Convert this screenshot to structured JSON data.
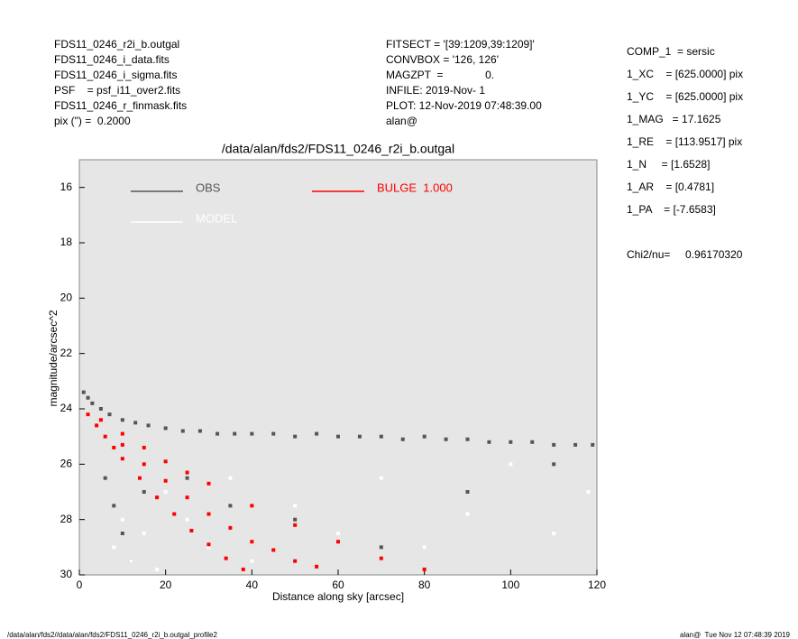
{
  "header": {
    "left": [
      "FDS11_0246_r2i_b.outgal",
      "FDS11_0246_i_data.fits",
      "FDS11_0246_i_sigma.fits",
      "PSF    = psf_i11_over2.fits",
      "FDS11_0246_r_finmask.fits",
      "pix (\") =  0.2000"
    ],
    "middle": [
      "FITSECT = '[39:1209,39:1209]'",
      "CONVBOX = '126, 126'",
      "MAGZPT  =              0.",
      "INFILE: 2019-Nov- 1",
      "PLOT: 12-Nov-2019 07:48:39.00",
      "alan@"
    ],
    "right": [
      "COMP_1  = sersic",
      "1_XC    = [625.0000] pix",
      "1_YC    = [625.0000] pix",
      "1_MAG   = 17.1625",
      "1_RE    = [113.9517] pix",
      "1_N     = [1.6528]",
      "1_AR    = [0.4781]",
      "1_PA    = [-7.6583]"
    ],
    "chi2": "Chi2/nu=     0.96170320"
  },
  "footer": {
    "left": "/data/alan/fds2//data/alan/fds2/FDS11_0246_r2i_b.outgal_profile2",
    "right": "alan@  Tue Nov 12 07:48:39 2019"
  },
  "chart_data": {
    "type": "scatter",
    "title": "/data/alan/fds2/FDS11_0246_r2i_b.outgal",
    "xlabel": "Distance along sky [arcsec]",
    "ylabel": "magnitude/arcsec^2",
    "xlim": [
      0,
      120
    ],
    "xticks": [
      0,
      20,
      40,
      60,
      80,
      100,
      120
    ],
    "ylim": [
      30,
      15
    ],
    "yticks": [
      16,
      18,
      20,
      22,
      24,
      26,
      28,
      30
    ],
    "series": [
      {
        "name": "OBS",
        "color": "#555555",
        "x": [
          1,
          2,
          3,
          5,
          7,
          10,
          13,
          16,
          20,
          24,
          28,
          32,
          36,
          40,
          45,
          50,
          55,
          60,
          65,
          70,
          75,
          80,
          85,
          90,
          95,
          100,
          105,
          110,
          115,
          119,
          6,
          8,
          10,
          12,
          15,
          25,
          35,
          50,
          70,
          90,
          110
        ],
        "values": [
          23.4,
          23.6,
          23.8,
          24.0,
          24.2,
          24.4,
          24.5,
          24.6,
          24.7,
          24.8,
          24.8,
          24.9,
          24.9,
          24.9,
          24.9,
          25.0,
          24.9,
          25.0,
          25.0,
          25.0,
          25.1,
          25.0,
          25.1,
          25.1,
          25.2,
          25.2,
          25.2,
          25.3,
          25.3,
          25.3,
          26.5,
          27.5,
          28.5,
          29.5,
          27.0,
          26.5,
          27.5,
          28.0,
          29.0,
          27.0,
          26.0
        ]
      },
      {
        "name": "MODEL",
        "color": "#ffffff",
        "x": [
          8,
          10,
          12,
          15,
          18,
          20,
          25,
          30,
          35,
          40,
          50,
          60,
          70,
          80,
          90,
          100,
          110,
          118
        ],
        "values": [
          29,
          28,
          29.5,
          28.5,
          29.8,
          27,
          28,
          29,
          26.5,
          29.5,
          27.5,
          28.5,
          26.5,
          29,
          27.8,
          26,
          28.5,
          27
        ]
      },
      {
        "name": "BULGE  1.000",
        "color": "#ff0000",
        "x": [
          2,
          4,
          6,
          8,
          10,
          14,
          18,
          22,
          26,
          30,
          34,
          38,
          5,
          10,
          15,
          20,
          25,
          30,
          40,
          50,
          60,
          70,
          80,
          20,
          30,
          40,
          50,
          10,
          15,
          25,
          35,
          45,
          55
        ],
        "values": [
          24.2,
          24.6,
          25.0,
          25.4,
          25.8,
          26.5,
          27.2,
          27.8,
          28.4,
          28.9,
          29.4,
          29.8,
          24.4,
          24.9,
          25.4,
          25.9,
          26.3,
          26.7,
          27.5,
          28.2,
          28.8,
          29.4,
          29.8,
          26.6,
          27.8,
          28.8,
          29.5,
          25.3,
          26.0,
          27.2,
          28.3,
          29.1,
          29.7
        ]
      }
    ]
  }
}
